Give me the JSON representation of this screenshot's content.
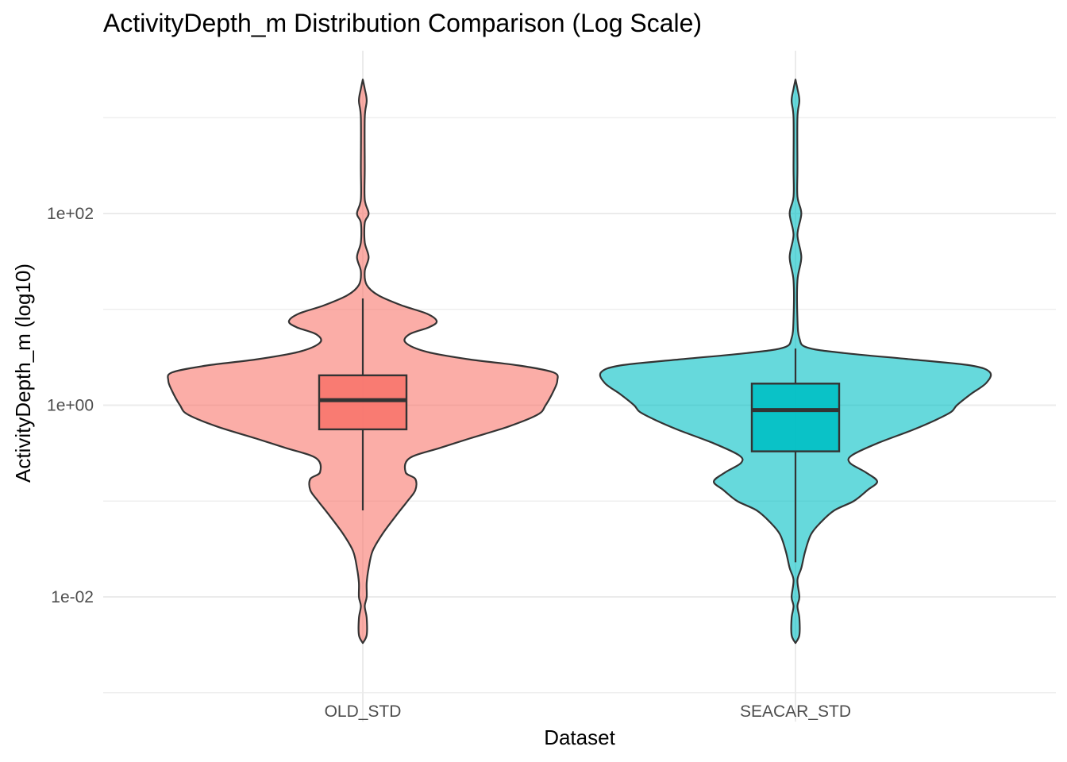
{
  "chart_data": {
    "type": "violin",
    "title": "ActivityDepth_m Distribution Comparison (Log Scale)",
    "xlabel": "Dataset",
    "ylabel": "ActivityDepth_m (log10)",
    "y_scale": "log10",
    "ylim": [
      0.0005,
      5000
    ],
    "y_ticks": [
      0.01,
      1,
      100
    ],
    "y_tick_labels": [
      "1e-02",
      "1e+00",
      "1e+02"
    ],
    "y_minor_ticks": [
      0.001,
      0.1,
      10,
      1000
    ],
    "grid": true,
    "legend": "none",
    "categories": [
      "OLD_STD",
      "SEACAR_STD"
    ],
    "series": [
      {
        "category": "OLD_STD",
        "color": "#F8766D",
        "box": {
          "min": 0.08,
          "q1": 0.56,
          "median": 1.13,
          "q3": 2.05,
          "max": 13
        },
        "range": [
          0.0033,
          2500
        ],
        "density": [
          [
            0.0033,
            0.0
          ],
          [
            0.004,
            0.02
          ],
          [
            0.006,
            0.02
          ],
          [
            0.008,
            0.01
          ],
          [
            0.01,
            0.02
          ],
          [
            0.014,
            0.02
          ],
          [
            0.02,
            0.03
          ],
          [
            0.03,
            0.05
          ],
          [
            0.045,
            0.1
          ],
          [
            0.07,
            0.17
          ],
          [
            0.1,
            0.23
          ],
          [
            0.13,
            0.27
          ],
          [
            0.17,
            0.27
          ],
          [
            0.2,
            0.22
          ],
          [
            0.28,
            0.24
          ],
          [
            0.36,
            0.4
          ],
          [
            0.45,
            0.55
          ],
          [
            0.6,
            0.75
          ],
          [
            0.8,
            0.9
          ],
          [
            1.0,
            0.94
          ],
          [
            1.4,
            0.98
          ],
          [
            1.8,
            1.0
          ],
          [
            2.2,
            0.98
          ],
          [
            2.6,
            0.8
          ],
          [
            3.0,
            0.55
          ],
          [
            3.6,
            0.33
          ],
          [
            4.5,
            0.22
          ],
          [
            5.5,
            0.24
          ],
          [
            6.5,
            0.34
          ],
          [
            7.5,
            0.38
          ],
          [
            9.0,
            0.33
          ],
          [
            11,
            0.2
          ],
          [
            14,
            0.08
          ],
          [
            18,
            0.02
          ],
          [
            25,
            0.01
          ],
          [
            35,
            0.03
          ],
          [
            50,
            0.01
          ],
          [
            80,
            0.01
          ],
          [
            100,
            0.03
          ],
          [
            140,
            0.01
          ],
          [
            300,
            0.01
          ],
          [
            1000,
            0.01
          ],
          [
            1500,
            0.02
          ],
          [
            2000,
            0.01
          ],
          [
            2500,
            0.0
          ]
        ]
      },
      {
        "category": "SEACAR_STD",
        "color": "#00BFC4",
        "box": {
          "min": 0.023,
          "q1": 0.33,
          "median": 0.89,
          "q3": 1.68,
          "max": 3.9
        },
        "range": [
          0.0033,
          2500
        ],
        "density": [
          [
            0.0033,
            0.0
          ],
          [
            0.004,
            0.02
          ],
          [
            0.006,
            0.02
          ],
          [
            0.008,
            0.01
          ],
          [
            0.01,
            0.02
          ],
          [
            0.015,
            0.01
          ],
          [
            0.02,
            0.03
          ],
          [
            0.03,
            0.05
          ],
          [
            0.045,
            0.08
          ],
          [
            0.06,
            0.13
          ],
          [
            0.08,
            0.2
          ],
          [
            0.1,
            0.3
          ],
          [
            0.13,
            0.37
          ],
          [
            0.16,
            0.42
          ],
          [
            0.2,
            0.36
          ],
          [
            0.25,
            0.28
          ],
          [
            0.3,
            0.29
          ],
          [
            0.4,
            0.42
          ],
          [
            0.55,
            0.6
          ],
          [
            0.7,
            0.72
          ],
          [
            0.85,
            0.8
          ],
          [
            1.0,
            0.83
          ],
          [
            1.3,
            0.9
          ],
          [
            1.7,
            0.98
          ],
          [
            2.2,
            1.0
          ],
          [
            2.6,
            0.9
          ],
          [
            3.0,
            0.6
          ],
          [
            3.5,
            0.25
          ],
          [
            4.0,
            0.06
          ],
          [
            5.0,
            0.02
          ],
          [
            8,
            0.01
          ],
          [
            20,
            0.01
          ],
          [
            35,
            0.03
          ],
          [
            60,
            0.01
          ],
          [
            100,
            0.03
          ],
          [
            150,
            0.01
          ],
          [
            300,
            0.01
          ],
          [
            1000,
            0.01
          ],
          [
            1500,
            0.02
          ],
          [
            2000,
            0.01
          ],
          [
            2500,
            0.0
          ]
        ]
      }
    ]
  }
}
